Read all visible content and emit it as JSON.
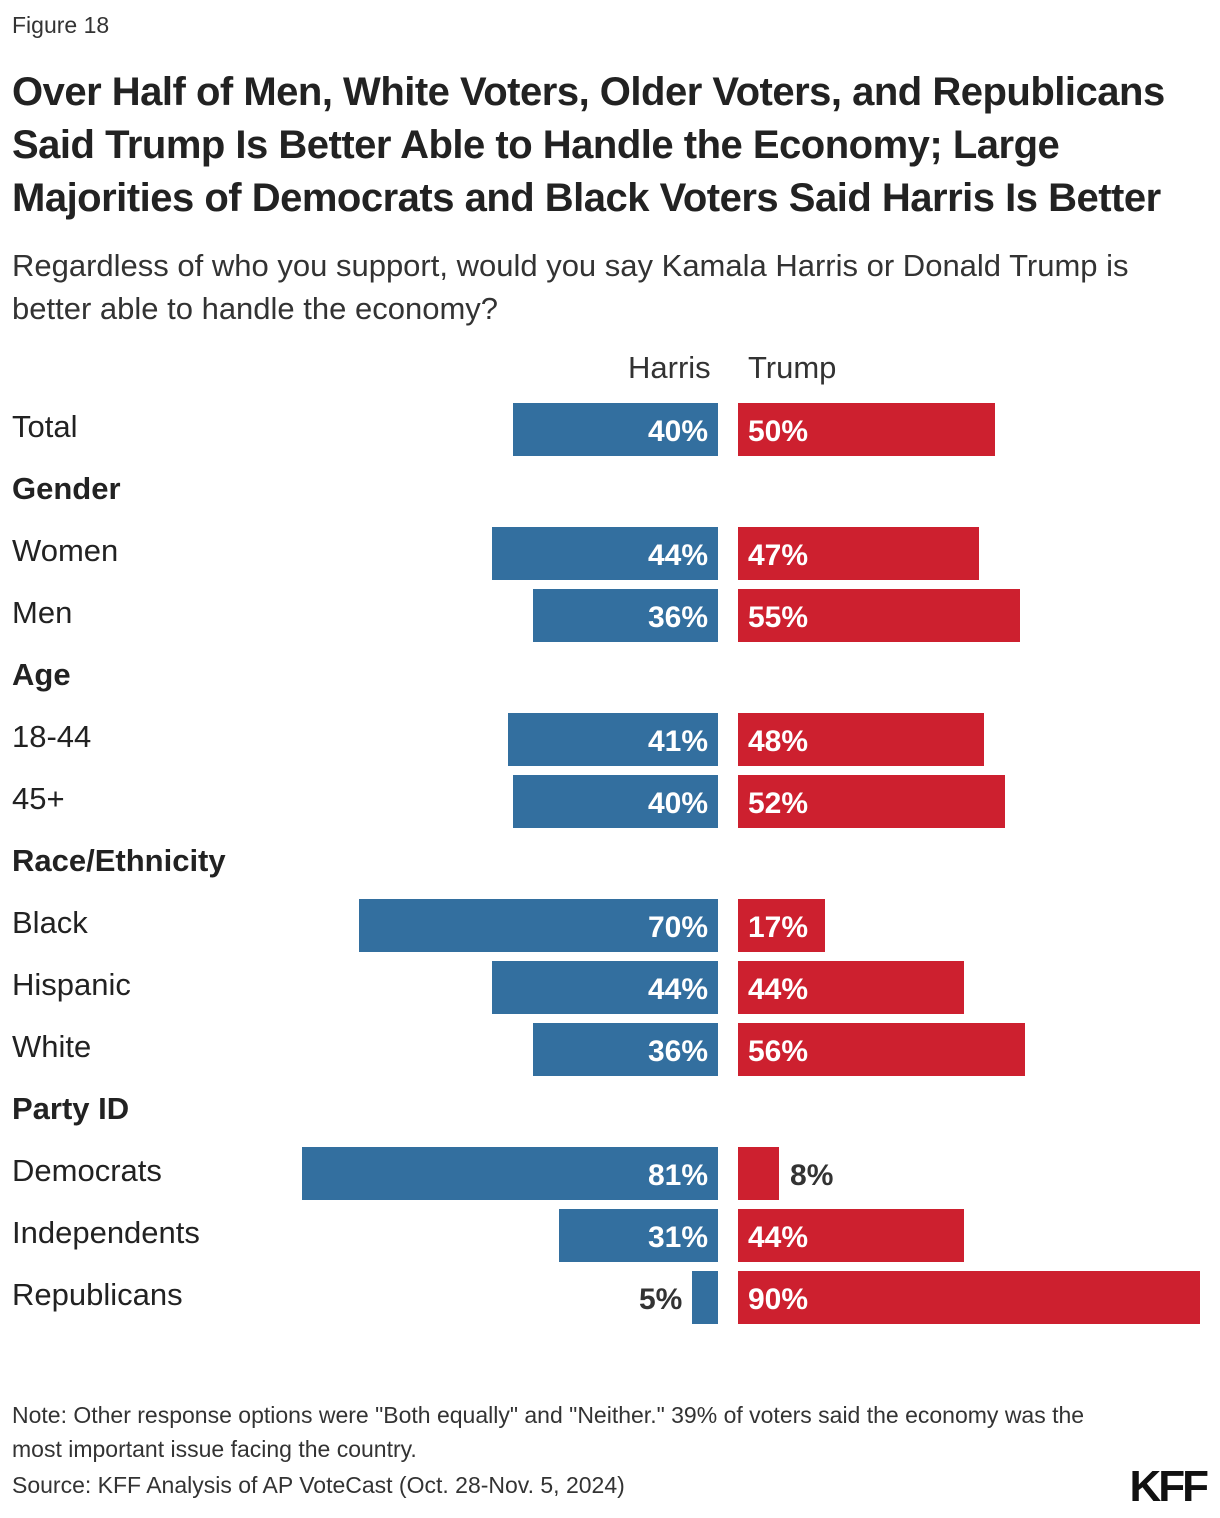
{
  "figure_label": "Figure 18",
  "title": "Over Half of Men, White Voters, Older Voters, and Republicans Said Trump Is Better Able to Handle the Economy; Large Majorities of Democrats and Black Voters Said Harris Is Better",
  "subtitle": "Regardless of who you support, would you say Kamala Harris or Donald Trump is better able to handle the economy?",
  "note": "Note: Other response options were \"Both equally\" and \"Neither.\" 39% of voters said the economy was the most important issue facing the country.",
  "source": "Source: KFF Analysis of AP VoteCast (Oct. 28-Nov. 5, 2024)",
  "logo": "KFF",
  "colors": {
    "harris": "#336f9f",
    "trump": "#cd202f"
  },
  "chart_data": {
    "type": "bar",
    "orientation": "horizontal-diverging",
    "series": [
      {
        "name": "Harris",
        "color": "#336f9f"
      },
      {
        "name": "Trump",
        "color": "#cd202f"
      }
    ],
    "rows": [
      {
        "label": "Total",
        "harris": 40,
        "trump": 50
      },
      {
        "group": "Gender"
      },
      {
        "label": "Women",
        "harris": 44,
        "trump": 47
      },
      {
        "label": "Men",
        "harris": 36,
        "trump": 55
      },
      {
        "group": "Age"
      },
      {
        "label": "18-44",
        "harris": 41,
        "trump": 48
      },
      {
        "label": "45+",
        "harris": 40,
        "trump": 52
      },
      {
        "group": "Race/Ethnicity"
      },
      {
        "label": "Black",
        "harris": 70,
        "trump": 17
      },
      {
        "label": "Hispanic",
        "harris": 44,
        "trump": 44
      },
      {
        "label": "White",
        "harris": 36,
        "trump": 56
      },
      {
        "group": "Party ID"
      },
      {
        "label": "Democrats",
        "harris": 81,
        "trump": 8
      },
      {
        "label": "Independents",
        "harris": 31,
        "trump": 44
      },
      {
        "label": "Republicans",
        "harris": 5,
        "trump": 90
      }
    ],
    "value_format": "{v}%"
  }
}
